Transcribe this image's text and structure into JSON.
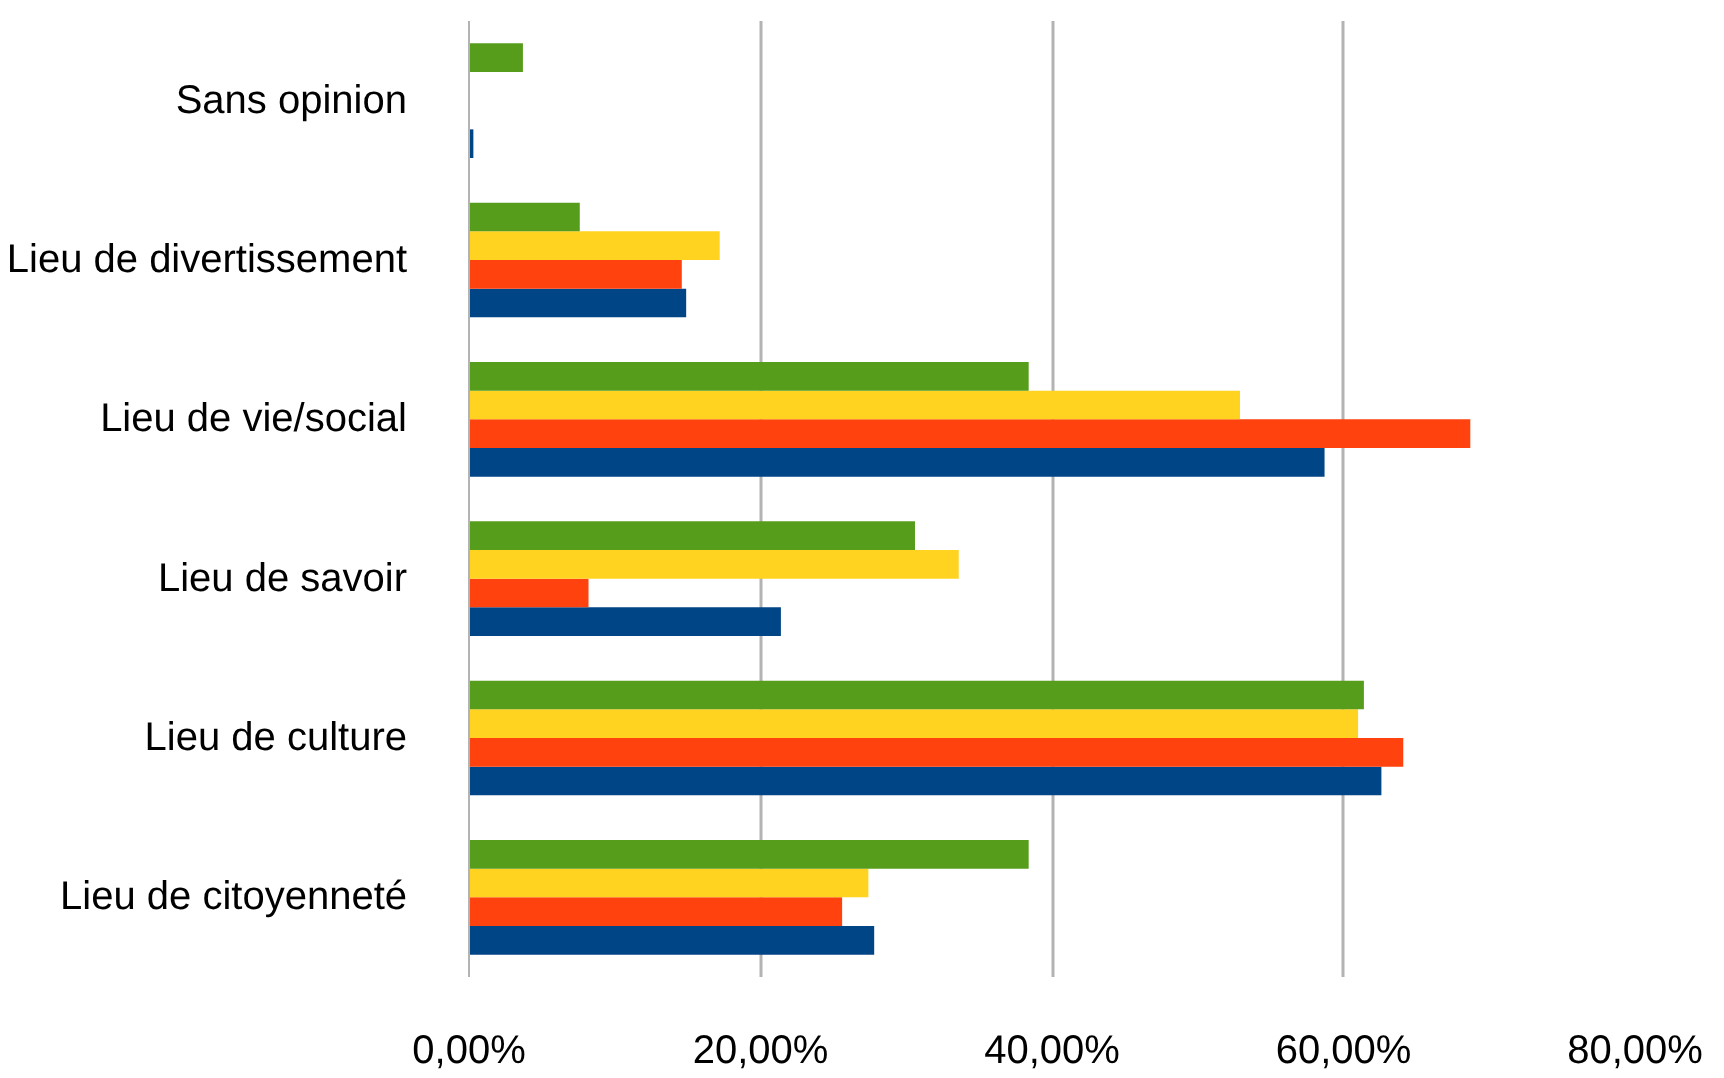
{
  "chart_data": {
    "type": "bar",
    "orientation": "horizontal",
    "categories": [
      "Sans opinion",
      "Lieu de divertissement",
      "Lieu de vie/social",
      "Lieu de savoir",
      "Lieu de culture",
      "Lieu de citoyenneté"
    ],
    "series": [
      {
        "color": "#004586",
        "values": [
          0.3,
          14.9,
          58.7,
          21.4,
          62.6,
          27.8
        ]
      },
      {
        "color": "#ff420e",
        "values": [
          null,
          14.6,
          68.7,
          8.2,
          64.1,
          25.6
        ]
      },
      {
        "color": "#ffd320",
        "values": [
          null,
          17.2,
          52.9,
          33.6,
          61.0,
          27.4
        ]
      },
      {
        "color": "#579d1c",
        "values": [
          3.7,
          7.6,
          38.4,
          30.6,
          61.4,
          38.4
        ]
      }
    ],
    "xlim": [
      0,
      80
    ],
    "xticks": [
      {
        "value": 0,
        "label": "0,00%"
      },
      {
        "value": 20,
        "label": "20,00%"
      },
      {
        "value": 40,
        "label": "40,00%"
      },
      {
        "value": 60,
        "label": "60,00%"
      },
      {
        "value": 80,
        "label": "80,00%"
      }
    ],
    "grid": "x"
  }
}
